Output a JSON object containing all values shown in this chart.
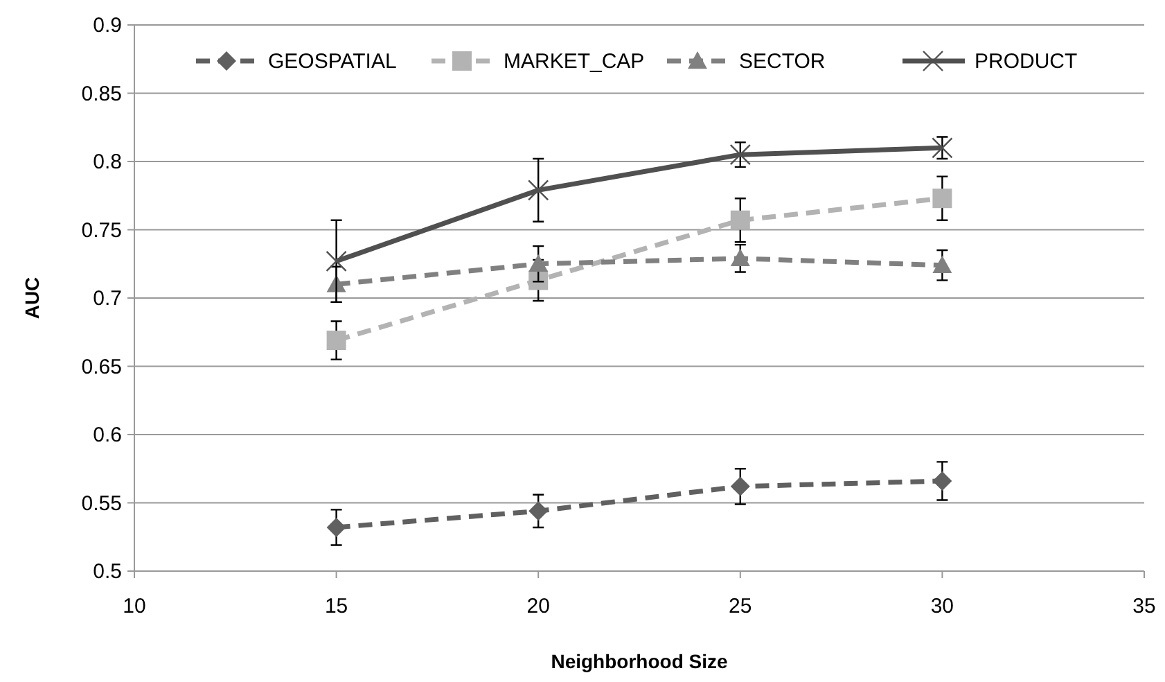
{
  "chart_data": {
    "type": "line",
    "xlabel": "Neighborhood Size",
    "ylabel": "AUC",
    "xlim": [
      10,
      35
    ],
    "xticks": [
      10,
      15,
      20,
      25,
      30,
      35
    ],
    "ylim": [
      0.5,
      0.9
    ],
    "yticks": [
      0.5,
      0.55,
      0.6,
      0.65,
      0.7,
      0.75,
      0.8,
      0.85,
      0.9
    ],
    "grid": "y",
    "legend": "top",
    "x": [
      15,
      20,
      25,
      30
    ],
    "series": [
      {
        "name": "GEOSPATIAL",
        "color": "#606060",
        "marker": "diamond",
        "line_style": "dashed",
        "values": [
          0.532,
          0.544,
          0.562,
          0.566
        ],
        "errors": [
          0.013,
          0.012,
          0.013,
          0.014
        ]
      },
      {
        "name": "MARKET_CAP",
        "color": "#b3b3b3",
        "marker": "square",
        "line_style": "dashed",
        "values": [
          0.669,
          0.713,
          0.757,
          0.773
        ],
        "errors": [
          0.014,
          0.015,
          0.016,
          0.016
        ]
      },
      {
        "name": "SECTOR",
        "color": "#808080",
        "marker": "triangle",
        "line_style": "dashed",
        "values": [
          0.71,
          0.725,
          0.729,
          0.724
        ],
        "errors": [
          0.013,
          0.013,
          0.01,
          0.011
        ]
      },
      {
        "name": "PRODUCT",
        "color": "#505050",
        "marker": "cross",
        "line_style": "solid",
        "values": [
          0.727,
          0.779,
          0.805,
          0.81
        ],
        "errors": [
          0.03,
          0.023,
          0.009,
          0.008
        ]
      }
    ]
  }
}
